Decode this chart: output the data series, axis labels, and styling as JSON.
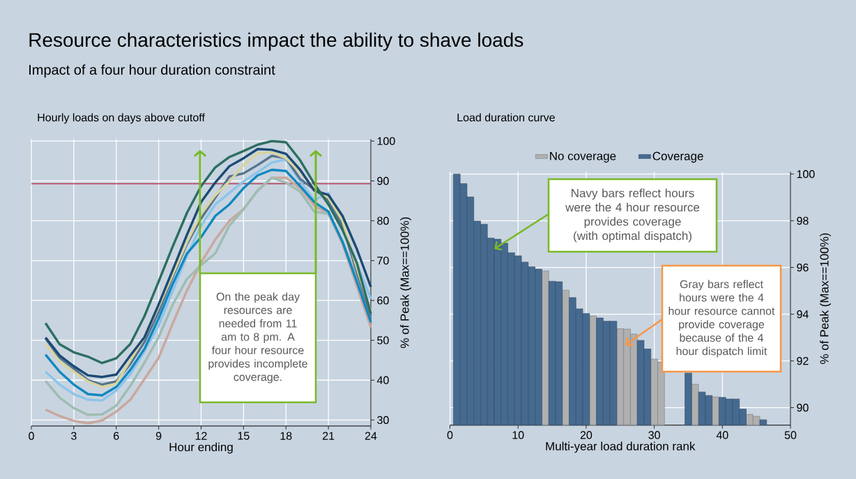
{
  "chart_data": [
    {
      "type": "line",
      "title": "Resource characteristics impact the ability to shave loads",
      "subtitle": "Impact of a four hour duration constraint",
      "xlabel": "Hour ending",
      "ylabel": "% of Peak (Max==100%)",
      "annotations": [
        "Hourly loads on days above cutoff",
        "On the peak day resources are needed from 11 am to 8 pm. A four hour resource provides incomplete coverage."
      ],
      "x": [
        1,
        2,
        3,
        4,
        5,
        6,
        7,
        8,
        9,
        10,
        11,
        12,
        13,
        14,
        15,
        16,
        17,
        18,
        19,
        20,
        21,
        22,
        23,
        24
      ],
      "series": [
        {
          "color": "#c9a89e",
          "values": [
            32.6,
            31.0,
            29.8,
            29.2,
            29.9,
            32.1,
            35.1,
            40.3,
            45.6,
            54.3,
            62.5,
            69.5,
            75.3,
            80.0,
            82.9,
            87.6,
            90.8,
            90.8,
            88.2,
            83.8,
            81.7,
            74.2,
            63.7,
            53.2
          ]
        },
        {
          "color": "#9fbcb2",
          "values": [
            39.8,
            35.6,
            33.0,
            31.3,
            31.4,
            33.6,
            38.6,
            44.4,
            50.8,
            59.0,
            65.4,
            68.9,
            71.8,
            78.8,
            82.9,
            87.6,
            90.8,
            89.6,
            87.3,
            82.3,
            81.7,
            74.7,
            66.0,
            56.1
          ]
        },
        {
          "color": "#8cc4ea",
          "values": [
            42.1,
            38.9,
            36.5,
            35.1,
            34.9,
            37.4,
            41.5,
            47.3,
            53.7,
            62.5,
            71.2,
            78.8,
            84.1,
            87.0,
            89.9,
            92.2,
            94.6,
            95.4,
            89.9,
            85.2,
            87.0,
            78.8,
            69.5,
            60.4
          ]
        },
        {
          "color": "#1088c0",
          "values": [
            46.4,
            42.1,
            38.9,
            36.5,
            36.2,
            38.3,
            42.6,
            47.9,
            55.5,
            64.2,
            71.8,
            75.9,
            81.2,
            84.1,
            88.2,
            91.4,
            92.8,
            92.5,
            88.7,
            84.7,
            82.3,
            74.7,
            64.8,
            54.6
          ]
        },
        {
          "color": "#56758e",
          "values": [
            50.5,
            45.6,
            42.9,
            40.0,
            38.9,
            39.7,
            44.1,
            49.6,
            57.2,
            66.0,
            74.2,
            80.6,
            85.8,
            91.1,
            91.9,
            94.0,
            96.3,
            95.7,
            90.5,
            87.9,
            85.2,
            78.8,
            67.2,
            56.1
          ]
        },
        {
          "color": "#d8d4a0",
          "values": [
            49.1,
            44.7,
            42.1,
            39.7,
            38.3,
            39.1,
            45.0,
            50.8,
            58.4,
            66.6,
            74.7,
            81.7,
            86.4,
            89.9,
            94.0,
            96.9,
            97.2,
            95.7,
            92.2,
            88.2,
            85.8,
            80.0,
            68.3,
            57.2
          ]
        },
        {
          "color": "#1c4a74",
          "values": [
            50.7,
            46.2,
            43.5,
            41.2,
            40.8,
            41.4,
            46.2,
            50.8,
            59.0,
            67.7,
            76.5,
            84.7,
            89.6,
            93.7,
            95.7,
            98.0,
            97.8,
            96.8,
            92.8,
            87.6,
            86.5,
            81.2,
            73.0,
            63.4
          ]
        },
        {
          "color": "#2d6e61",
          "values": [
            54.3,
            49.0,
            47.0,
            45.9,
            44.3,
            45.5,
            49.1,
            56.1,
            64.8,
            73.6,
            82.0,
            88.7,
            93.4,
            96.0,
            97.5,
            99.1,
            100,
            99.7,
            95.2,
            89.3,
            84.1,
            77.7,
            69.5,
            56.7
          ]
        }
      ],
      "xlim": [
        0,
        24
      ],
      "ylim": [
        28.5,
        100.5
      ],
      "xticks": [
        0,
        3,
        6,
        9,
        12,
        15,
        18,
        21,
        24
      ],
      "yticks": [
        30,
        40,
        50,
        60,
        70,
        80,
        90,
        100
      ],
      "grid": true,
      "line_style": "solid",
      "ref_lines": [
        {
          "axis": "y",
          "value": 89.3,
          "color": "#b5384f"
        }
      ]
    },
    {
      "type": "bar",
      "title": "Load duration curve",
      "xlabel": "Multi-year load duration rank",
      "ylabel": "% of Peak (Max==100%)",
      "annotations": [
        "Navy bars reflect hours were the 4 hour resource provides coverage (with optimal dispatch)",
        "Gray bars reflect hours were the 4 hour resource cannot provide coverage because of the 4 hour dispatch limit"
      ],
      "x": [
        1,
        2,
        3,
        4,
        5,
        6,
        7,
        8,
        9,
        10,
        11,
        12,
        13,
        14,
        15,
        16,
        17,
        18,
        19,
        20,
        21,
        22,
        23,
        24,
        25,
        26,
        27,
        28,
        29,
        30,
        31,
        32,
        33,
        34,
        35,
        36,
        37,
        38,
        39,
        40,
        41,
        42,
        43,
        44,
        45,
        46
      ],
      "series": [
        {
          "name": "No coverage",
          "color": "#b0b0b0",
          "values": [
            null,
            null,
            null,
            null,
            null,
            null,
            null,
            null,
            null,
            null,
            null,
            null,
            null,
            95.85,
            null,
            null,
            95.03,
            null,
            null,
            null,
            93.93,
            null,
            null,
            null,
            93.38,
            93.36,
            93.15,
            null,
            null,
            92.08,
            91.95,
            null,
            null,
            null,
            null,
            91.0,
            null,
            null,
            90.46,
            null,
            null,
            null,
            null,
            89.71,
            89.63,
            null
          ]
        },
        {
          "name": "Coverage",
          "color": "#466a8f",
          "values": [
            100.0,
            99.59,
            99.02,
            97.99,
            97.85,
            97.26,
            97.21,
            97.04,
            96.63,
            96.5,
            96.23,
            96.03,
            95.93,
            null,
            95.41,
            95.39,
            null,
            94.71,
            94.23,
            94.03,
            null,
            93.84,
            93.7,
            93.7,
            null,
            null,
            null,
            92.88,
            92.51,
            null,
            null,
            null,
            null,
            null,
            91.48,
            null,
            90.67,
            90.52,
            null,
            90.44,
            90.37,
            90.37,
            89.94,
            null,
            null,
            89.48
          ]
        }
      ],
      "xlim": [
        0,
        50
      ],
      "ylim": [
        89.25,
        100.1
      ],
      "xticks": [
        0,
        10,
        20,
        30,
        40,
        50
      ],
      "yticks": [
        90,
        92,
        94,
        96,
        98,
        100
      ],
      "grid": true,
      "legend": "top"
    }
  ]
}
